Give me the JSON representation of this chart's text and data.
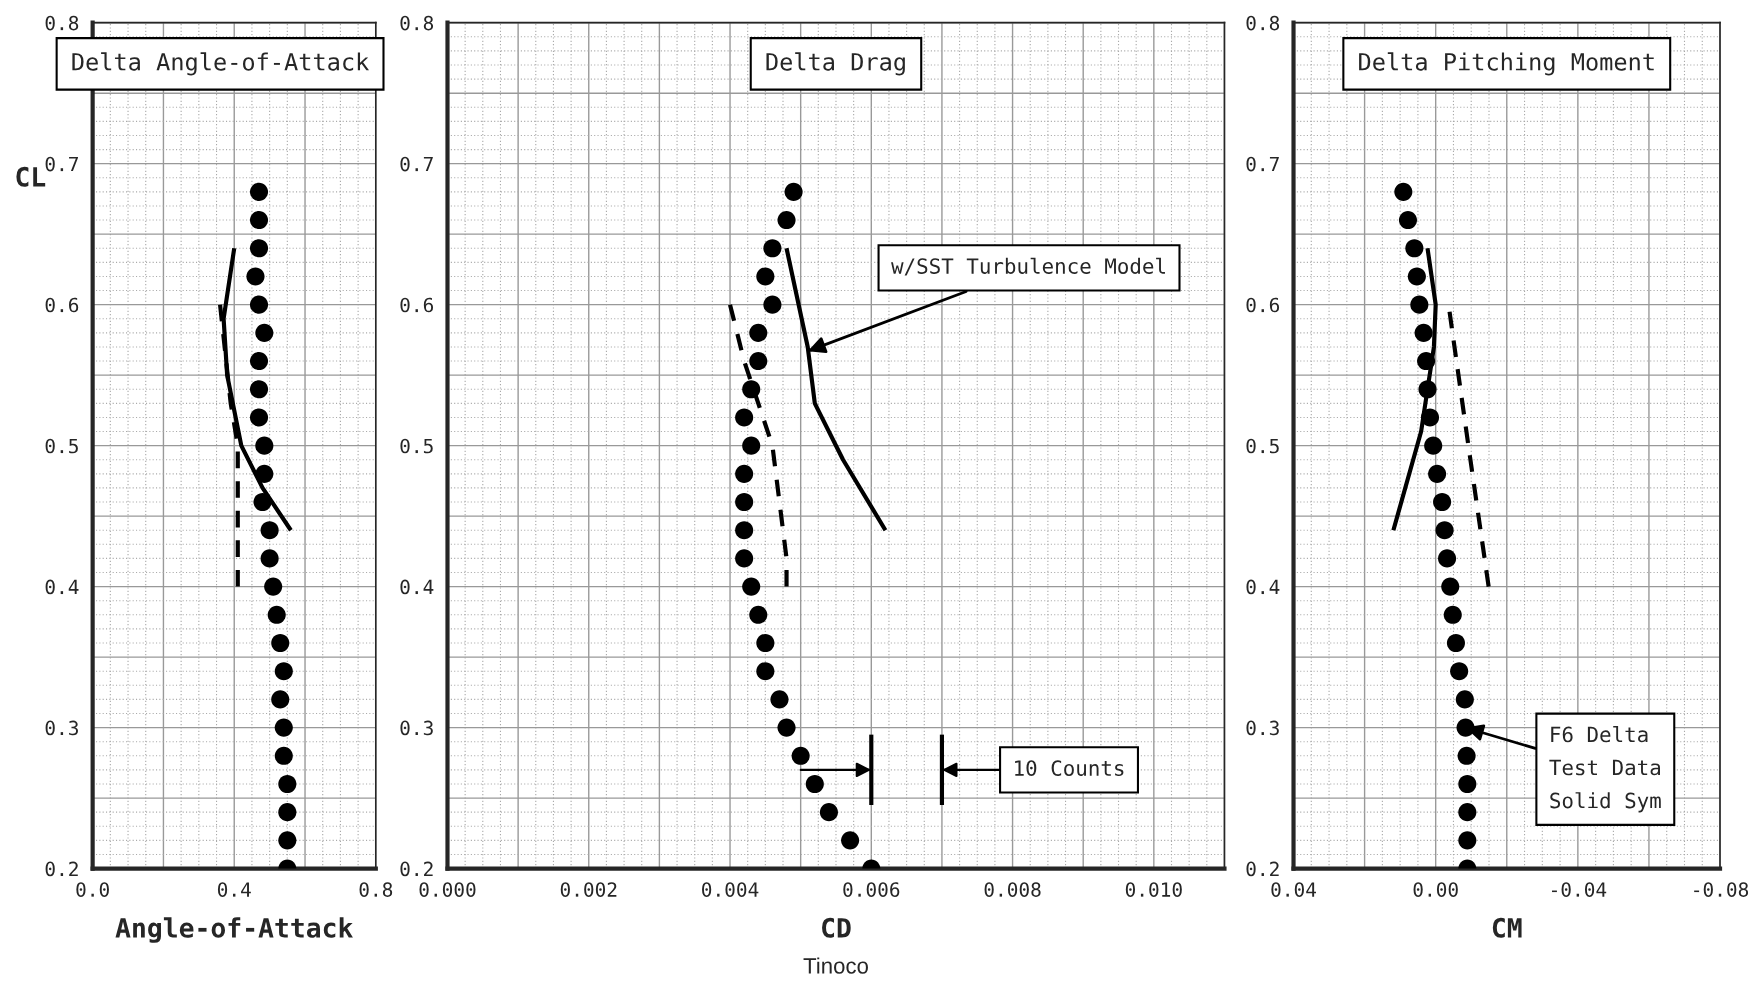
{
  "chart_data": [
    {
      "type": "scatter",
      "title": "Delta Angle-of-Attack",
      "xlabel": "Angle-of-Attack",
      "ylabel": "CL",
      "xlim": [
        0,
        0.8
      ],
      "ylim": [
        0.2,
        0.8
      ],
      "xticks": [
        {
          "value": 0,
          "label": "0.0"
        },
        {
          "value": 0.2,
          "label": null
        },
        0.4,
        {
          "value": 0.6,
          "label": null
        },
        0.8
      ],
      "yticks": [
        0.2,
        {
          "value": 0.25,
          "label": null
        },
        0.3,
        {
          "value": 0.35,
          "label": null
        },
        0.4,
        {
          "value": 0.45,
          "label": null
        },
        0.5,
        {
          "value": 0.55,
          "label": null
        },
        0.6,
        {
          "value": 0.65,
          "label": null
        },
        0.7,
        {
          "value": 0.75,
          "label": null
        },
        0.8
      ],
      "grid": true,
      "legend": false,
      "series": [
        {
          "marker": "circle",
          "color": "#000000",
          "x": [
            0.47,
            0.47,
            0.47,
            0.46,
            0.47,
            0.485,
            0.47,
            0.47,
            0.47,
            0.485,
            0.485,
            0.48,
            0.5,
            0.5,
            0.51,
            0.52,
            0.53,
            0.54,
            0.53,
            0.54,
            0.54,
            0.55,
            0.55,
            0.55,
            0.55
          ],
          "values": [
            0.68,
            0.66,
            0.64,
            0.62,
            0.6,
            0.58,
            0.56,
            0.54,
            0.52,
            0.5,
            0.48,
            0.46,
            0.44,
            0.42,
            0.4,
            0.38,
            0.36,
            0.34,
            0.32,
            0.3,
            0.28,
            0.26,
            0.24,
            0.22,
            0.2
          ]
        },
        {
          "type": "line",
          "marker": "none",
          "line_style": "solid",
          "color": "#000000",
          "x": [
            0.4,
            0.37,
            0.38,
            0.42,
            0.48,
            0.56
          ],
          "values": [
            0.64,
            0.59,
            0.55,
            0.5,
            0.47,
            0.44
          ]
        },
        {
          "type": "line",
          "marker": "none",
          "line_style": "dashed",
          "color": "#000000",
          "x": [
            0.36,
            0.39,
            0.41,
            0.41
          ],
          "values": [
            0.6,
            0.53,
            0.5,
            0.4
          ]
        }
      ]
    },
    {
      "type": "scatter",
      "title": "Delta Drag",
      "xlabel": "CD",
      "xlim": [
        0,
        0.011
      ],
      "ylim": [
        0.2,
        0.8
      ],
      "xticks": [
        {
          "value": 0,
          "label": "0.000"
        },
        {
          "value": 0.001,
          "label": null
        },
        {
          "value": 0.002,
          "label": "0.002"
        },
        {
          "value": 0.003,
          "label": null
        },
        {
          "value": 0.004,
          "label": "0.004"
        },
        {
          "value": 0.005,
          "label": null
        },
        {
          "value": 0.006,
          "label": "0.006"
        },
        {
          "value": 0.007,
          "label": null
        },
        {
          "value": 0.008,
          "label": "0.008"
        },
        {
          "value": 0.009,
          "label": null
        },
        {
          "value": 0.01,
          "label": "0.010"
        },
        {
          "value": 0.011,
          "label": null
        }
      ],
      "yticks": [
        0.2,
        {
          "value": 0.25,
          "label": null
        },
        0.3,
        {
          "value": 0.35,
          "label": null
        },
        0.4,
        {
          "value": 0.45,
          "label": null
        },
        0.5,
        {
          "value": 0.55,
          "label": null
        },
        0.6,
        {
          "value": 0.65,
          "label": null
        },
        0.7,
        {
          "value": 0.75,
          "label": null
        },
        0.8
      ],
      "grid": true,
      "legend": false,
      "series": [
        {
          "marker": "circle",
          "color": "#000000",
          "x": [
            0.0049,
            0.0048,
            0.0046,
            0.0045,
            0.0046,
            0.0044,
            0.0044,
            0.0043,
            0.0042,
            0.0043,
            0.0042,
            0.0042,
            0.0042,
            0.0042,
            0.0043,
            0.0044,
            0.0045,
            0.0045,
            0.0047,
            0.0048,
            0.005,
            0.0052,
            0.0054,
            0.0057,
            0.006
          ],
          "values": [
            0.68,
            0.66,
            0.64,
            0.62,
            0.6,
            0.58,
            0.56,
            0.54,
            0.52,
            0.5,
            0.48,
            0.46,
            0.44,
            0.42,
            0.4,
            0.38,
            0.36,
            0.34,
            0.32,
            0.3,
            0.28,
            0.26,
            0.24,
            0.22,
            0.2
          ]
        },
        {
          "type": "line",
          "marker": "none",
          "line_style": "solid",
          "color": "#000000",
          "x": [
            0.0048,
            0.0051,
            0.0052,
            0.0056,
            0.0062
          ],
          "values": [
            0.64,
            0.57,
            0.53,
            0.49,
            0.44
          ]
        },
        {
          "type": "line",
          "marker": "none",
          "line_style": "dashed",
          "color": "#000000",
          "x": [
            0.004,
            0.0042,
            0.0046,
            0.0048,
            0.0048
          ],
          "values": [
            0.6,
            0.56,
            0.5,
            0.42,
            0.4
          ]
        },
        {
          "type": "line",
          "marker": "none",
          "line_style": "solid",
          "color": "#000000",
          "x": [
            0.006,
            0.006
          ],
          "values": [
            0.245,
            0.295
          ]
        },
        {
          "type": "line",
          "marker": "none",
          "line_style": "solid",
          "color": "#000000",
          "x": [
            0.007,
            0.007
          ],
          "values": [
            0.245,
            0.295
          ]
        }
      ],
      "annotations": [
        {
          "text": "w/SST Turbulence Model",
          "x": 0.0051,
          "y": 0.567
        },
        "10 Counts",
        "Tinoco"
      ]
    },
    {
      "type": "scatter",
      "title": "Delta Pitching Moment",
      "xlabel": "CM",
      "xlim": [
        0.04,
        -0.08
      ],
      "ylim": [
        0.2,
        0.8
      ],
      "xticks": [
        0.04,
        {
          "value": 0.02,
          "label": null
        },
        {
          "value": 0,
          "label": "0.00"
        },
        {
          "value": -0.02,
          "label": null
        },
        {
          "value": -0.04,
          "label": "-0.04"
        },
        {
          "value": -0.06,
          "label": null
        },
        {
          "value": -0.08,
          "label": "-0.08"
        }
      ],
      "yticks": [
        0.2,
        {
          "value": 0.25,
          "label": null
        },
        0.3,
        {
          "value": 0.35,
          "label": null
        },
        0.4,
        {
          "value": 0.45,
          "label": null
        },
        0.5,
        {
          "value": 0.55,
          "label": null
        },
        0.6,
        {
          "value": 0.65,
          "label": null
        },
        0.7,
        {
          "value": 0.75,
          "label": null
        },
        0.8
      ],
      "grid": true,
      "legend": false,
      "series": [
        {
          "marker": "circle",
          "color": "#000000",
          "x": [
            0.0091,
            0.0078,
            0.006,
            0.0053,
            0.0046,
            0.0034,
            0.0027,
            0.0023,
            0.0016,
            0.0007,
            -0.0004,
            -0.0018,
            -0.0025,
            -0.0032,
            -0.0041,
            -0.0048,
            -0.0057,
            -0.0066,
            -0.0082,
            -0.0084,
            -0.0087,
            -0.0089,
            -0.0089,
            -0.0089,
            -0.0089
          ],
          "values": [
            0.68,
            0.66,
            0.64,
            0.62,
            0.6,
            0.58,
            0.56,
            0.54,
            0.52,
            0.5,
            0.48,
            0.46,
            0.44,
            0.42,
            0.4,
            0.38,
            0.36,
            0.34,
            0.32,
            0.3,
            0.28,
            0.26,
            0.24,
            0.22,
            0.2
          ]
        },
        {
          "type": "line",
          "marker": "none",
          "line_style": "solid",
          "color": "#000000",
          "x": [
            0.0023,
            0.0,
            0.0005,
            0.0041,
            0.0119
          ],
          "values": [
            0.64,
            0.6,
            0.57,
            0.51,
            0.44
          ]
        },
        {
          "type": "line",
          "marker": "none",
          "line_style": "dashed",
          "color": "#000000",
          "x": [
            -0.0039,
            -0.0092,
            -0.0149
          ],
          "values": [
            0.595,
            0.5,
            0.4
          ]
        }
      ],
      "annotations": [
        {
          "text": "F6 Delta\nTest Data\nSolid Sym",
          "x": -0.0084,
          "y": 0.3
        }
      ]
    }
  ]
}
